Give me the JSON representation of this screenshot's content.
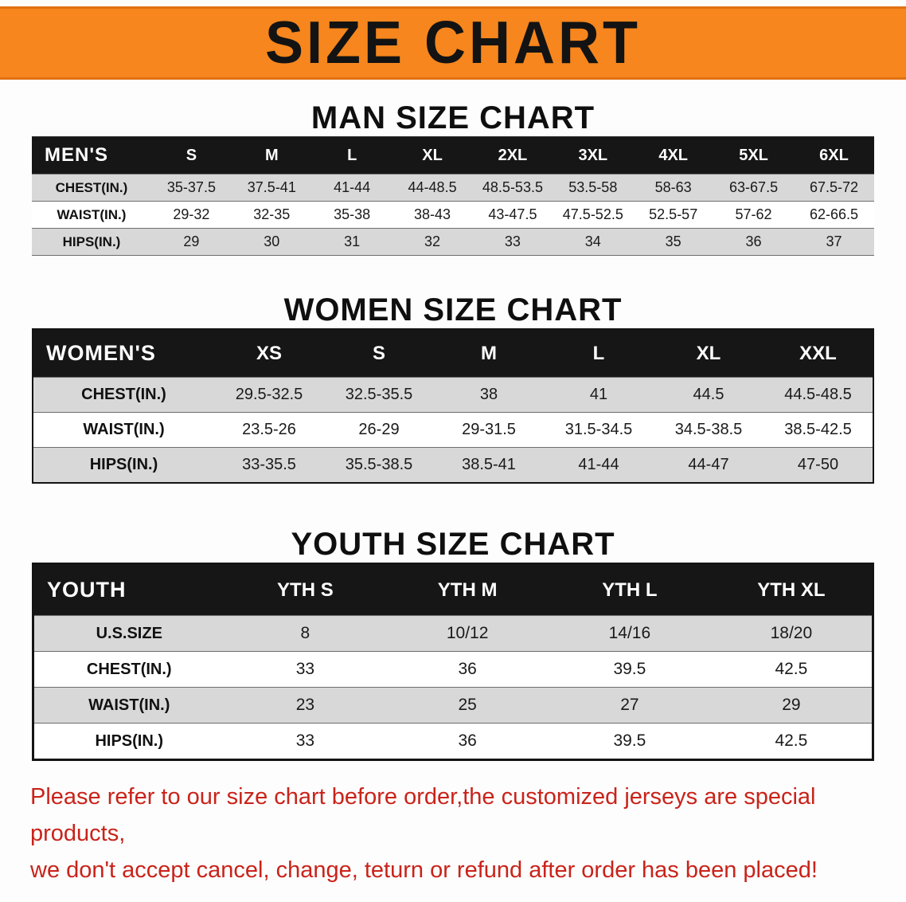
{
  "banner": {
    "title": "SIZE CHART",
    "bg_color": "#f6861d",
    "text_color": "#131313"
  },
  "sections": {
    "men": {
      "heading": "MAN SIZE CHART",
      "table": {
        "header": [
          "MEN'S",
          "S",
          "M",
          "L",
          "XL",
          "2XL",
          "3XL",
          "4XL",
          "5XL",
          "6XL"
        ],
        "rows": [
          [
            "CHEST(IN.)",
            "35-37.5",
            "37.5-41",
            "41-44",
            "44-48.5",
            "48.5-53.5",
            "53.5-58",
            "58-63",
            "63-67.5",
            "67.5-72"
          ],
          [
            "WAIST(IN.)",
            "29-32",
            "32-35",
            "35-38",
            "38-43",
            "43-47.5",
            "47.5-52.5",
            "52.5-57",
            "57-62",
            "62-66.5"
          ],
          [
            "HIPS(IN.)",
            "29",
            "30",
            "31",
            "32",
            "33",
            "34",
            "35",
            "36",
            "37"
          ]
        ]
      }
    },
    "women": {
      "heading": "WOMEN SIZE CHART",
      "table": {
        "header": [
          "WOMEN'S",
          "XS",
          "S",
          "M",
          "L",
          "XL",
          "XXL"
        ],
        "rows": [
          [
            "CHEST(IN.)",
            "29.5-32.5",
            "32.5-35.5",
            "38",
            "41",
            "44.5",
            "44.5-48.5"
          ],
          [
            "WAIST(IN.)",
            "23.5-26",
            "26-29",
            "29-31.5",
            "31.5-34.5",
            "34.5-38.5",
            "38.5-42.5"
          ],
          [
            "HIPS(IN.)",
            "33-35.5",
            "35.5-38.5",
            "38.5-41",
            "41-44",
            "44-47",
            "47-50"
          ]
        ]
      }
    },
    "youth": {
      "heading": "YOUTH SIZE CHART",
      "table": {
        "header": [
          "YOUTH",
          "YTH S",
          "YTH M",
          "YTH L",
          "YTH XL"
        ],
        "rows": [
          [
            "U.S.SIZE",
            "8",
            "10/12",
            "14/16",
            "18/20"
          ],
          [
            "CHEST(IN.)",
            "33",
            "36",
            "39.5",
            "42.5"
          ],
          [
            "WAIST(IN.)",
            "23",
            "25",
            "27",
            "29"
          ],
          [
            "HIPS(IN.)",
            "33",
            "36",
            "39.5",
            "42.5"
          ]
        ]
      }
    }
  },
  "footer": {
    "line1": "Please refer to our size chart before order,the customized jerseys are special products,",
    "line2": "we don't accept cancel, change, teturn or refund after order has been placed!",
    "text_color": "#c9231a"
  }
}
